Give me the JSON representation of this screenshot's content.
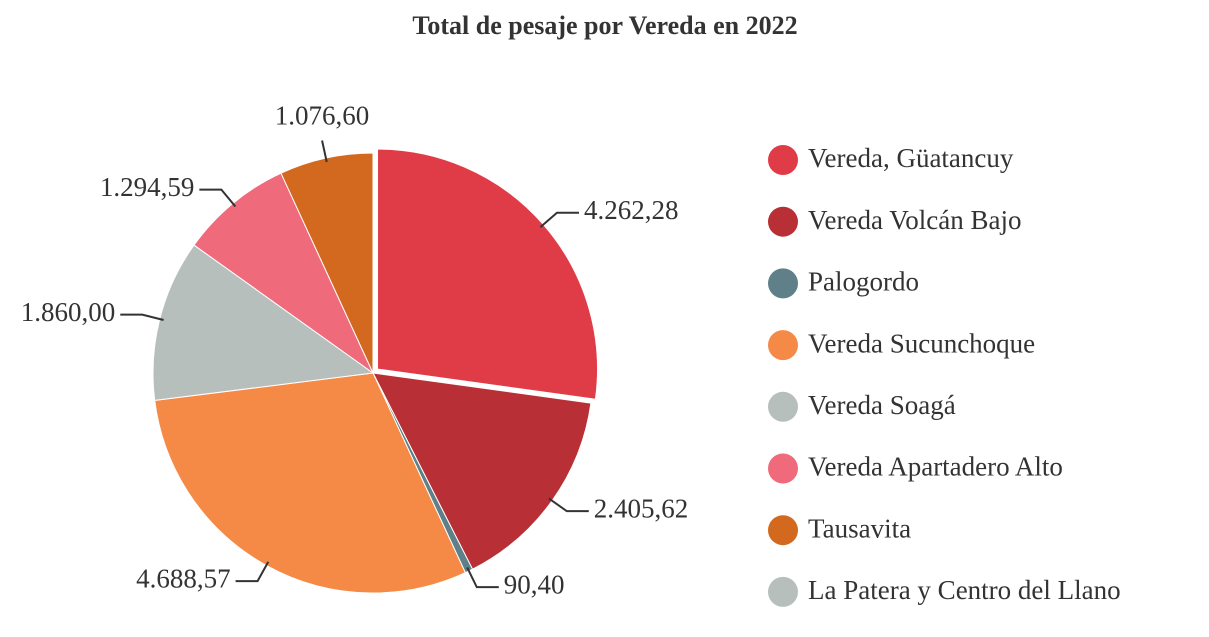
{
  "chart_data": {
    "type": "pie",
    "title": "Total de pesaje por Vereda en 2022",
    "categories": [
      "Vereda, Güatancuy",
      "Vereda Volcán Bajo",
      "Palogordo",
      "Vereda Sucunchoque",
      "Vereda Soagá",
      "Vereda Apartadero Alto",
      "Tausavita",
      "La Patera y Centro del Llano"
    ],
    "values": [
      4262.28,
      2405.62,
      90.4,
      4688.57,
      1860.0,
      1294.59,
      1076.6,
      null
    ],
    "value_labels": [
      "4.262,28",
      "2.405,62",
      "90,40",
      "4.688,57",
      "1.860,00",
      "1.294,59",
      "1.076,60",
      null
    ],
    "colors": [
      "#e03c48",
      "#b83035",
      "#5f8089",
      "#f58a47",
      "#b7bfbd",
      "#ef6a7b",
      "#d2691e",
      "#b7bfbd"
    ],
    "legend": "right"
  }
}
